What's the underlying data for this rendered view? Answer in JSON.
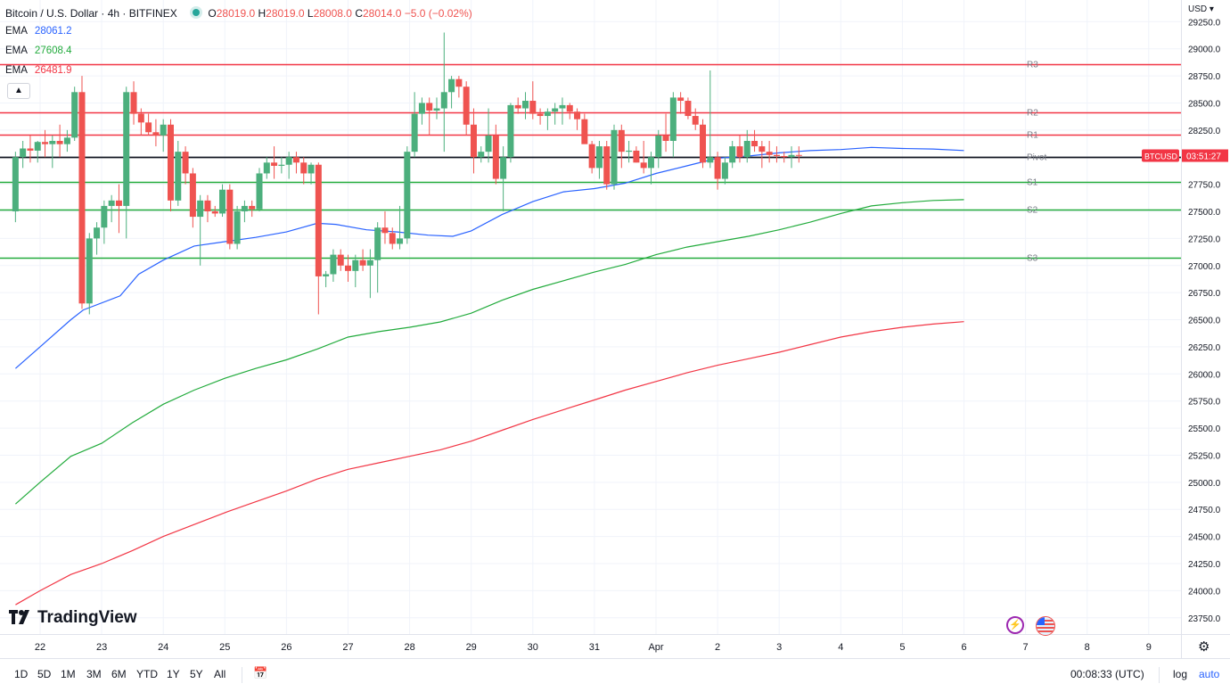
{
  "header": {
    "title": "Bitcoin / U.S. Dollar · 4h · BITFINEX",
    "ohlc": {
      "o_label": "O",
      "o": "28019.0",
      "h_label": "H",
      "h": "28019.0",
      "l_label": "L",
      "l": "28008.0",
      "c_label": "C",
      "c": "28014.0",
      "change": "−5.0 (−0.02%)"
    }
  },
  "indicators": [
    {
      "label": "EMA",
      "value": "28061.2",
      "color": "#2962ff"
    },
    {
      "label": "EMA",
      "value": "27608.4",
      "color": "#22ab3c"
    },
    {
      "label": "EMA",
      "value": "26481.9",
      "color": "#f23645"
    }
  ],
  "currency": "USD",
  "price_badge": {
    "symbol": "BTCUSD",
    "countdown": "03:51:27",
    "color": "#f23645"
  },
  "brand": "TradingView",
  "bottom_bar": {
    "ranges": [
      "1D",
      "5D",
      "1M",
      "3M",
      "6M",
      "YTD",
      "1Y",
      "5Y",
      "All"
    ],
    "clock": "00:08:33 (UTC)",
    "log_label": "log",
    "auto_label": "auto"
  },
  "colors": {
    "up": "#26a69a",
    "up_body": "#4caf7d",
    "down": "#ef5350",
    "pivot": "#131722",
    "resistance": "#f23645",
    "support": "#22ab3c"
  },
  "chart_data": {
    "type": "candlestick",
    "y_axis_ticks": [
      "29250.0",
      "29000.0",
      "28750.0",
      "28500.0",
      "28250.0",
      "28000.0",
      "27750.0",
      "27500.0",
      "27250.0",
      "27000.0",
      "26750.0",
      "26500.0",
      "26250.0",
      "26000.0",
      "25750.0",
      "25500.0",
      "25250.0",
      "25000.0",
      "24750.0",
      "24500.0",
      "24250.0",
      "24000.0",
      "23750.0"
    ],
    "ylim": [
      23600,
      29450
    ],
    "x_axis_ticks": [
      "22",
      "23",
      "24",
      "25",
      "26",
      "27",
      "28",
      "29",
      "30",
      "31",
      "Apr",
      "2",
      "3",
      "4",
      "5",
      "6",
      "7",
      "8",
      "9"
    ],
    "pivot_levels": [
      {
        "name": "R3",
        "value": 28860
      },
      {
        "name": "R2",
        "value": 28410
      },
      {
        "name": "R1",
        "value": 28210
      },
      {
        "name": "Pivot",
        "value": 28000
      },
      {
        "name": "S1",
        "value": 27770
      },
      {
        "name": "S2",
        "value": 27520
      },
      {
        "name": "S3",
        "value": 27070
      }
    ],
    "ema_series": [
      {
        "name": "EMA",
        "color": "#2962ff",
        "points": [
          [
            21.6,
            26050
          ],
          [
            22.0,
            26250
          ],
          [
            22.5,
            26500
          ],
          [
            22.7,
            26590
          ],
          [
            23.3,
            26720
          ],
          [
            23.6,
            26920
          ],
          [
            24.0,
            27050
          ],
          [
            24.5,
            27180
          ],
          [
            25.0,
            27220
          ],
          [
            25.5,
            27260
          ],
          [
            26.0,
            27310
          ],
          [
            26.5,
            27390
          ],
          [
            26.8,
            27380
          ],
          [
            27.3,
            27330
          ],
          [
            27.8,
            27310
          ],
          [
            28.3,
            27280
          ],
          [
            28.7,
            27270
          ],
          [
            29.0,
            27320
          ],
          [
            29.5,
            27470
          ],
          [
            30.0,
            27590
          ],
          [
            30.5,
            27680
          ],
          [
            31.0,
            27710
          ],
          [
            31.5,
            27760
          ],
          [
            32.0,
            27850
          ],
          [
            32.5,
            27920
          ],
          [
            33.0,
            27990
          ],
          [
            33.5,
            28010
          ],
          [
            34.0,
            28040
          ],
          [
            34.5,
            28060
          ],
          [
            35.0,
            28070
          ],
          [
            35.5,
            28090
          ],
          [
            36.0,
            28080
          ],
          [
            36.5,
            28075
          ],
          [
            37.0,
            28061
          ]
        ]
      },
      {
        "name": "EMA",
        "color": "#22ab3c",
        "points": [
          [
            21.6,
            24800
          ],
          [
            22.0,
            25000
          ],
          [
            22.5,
            25240
          ],
          [
            23.0,
            25360
          ],
          [
            23.5,
            25550
          ],
          [
            24.0,
            25720
          ],
          [
            24.5,
            25850
          ],
          [
            25.0,
            25960
          ],
          [
            25.5,
            26050
          ],
          [
            26.0,
            26130
          ],
          [
            26.5,
            26230
          ],
          [
            27.0,
            26340
          ],
          [
            27.5,
            26390
          ],
          [
            28.0,
            26430
          ],
          [
            28.5,
            26480
          ],
          [
            29.0,
            26560
          ],
          [
            29.5,
            26680
          ],
          [
            30.0,
            26780
          ],
          [
            30.5,
            26860
          ],
          [
            31.0,
            26940
          ],
          [
            31.5,
            27010
          ],
          [
            32.0,
            27100
          ],
          [
            32.5,
            27170
          ],
          [
            33.0,
            27220
          ],
          [
            33.5,
            27270
          ],
          [
            34.0,
            27330
          ],
          [
            34.5,
            27400
          ],
          [
            35.0,
            27480
          ],
          [
            35.5,
            27550
          ],
          [
            36.0,
            27580
          ],
          [
            36.5,
            27600
          ],
          [
            37.0,
            27608
          ]
        ]
      },
      {
        "name": "EMA",
        "color": "#f23645",
        "points": [
          [
            21.6,
            23870
          ],
          [
            22.0,
            24000
          ],
          [
            22.5,
            24150
          ],
          [
            23.0,
            24250
          ],
          [
            23.5,
            24370
          ],
          [
            24.0,
            24500
          ],
          [
            24.5,
            24610
          ],
          [
            25.0,
            24720
          ],
          [
            25.5,
            24820
          ],
          [
            26.0,
            24920
          ],
          [
            26.5,
            25030
          ],
          [
            27.0,
            25120
          ],
          [
            27.5,
            25180
          ],
          [
            28.0,
            25240
          ],
          [
            28.5,
            25300
          ],
          [
            29.0,
            25380
          ],
          [
            29.5,
            25480
          ],
          [
            30.0,
            25580
          ],
          [
            30.5,
            25670
          ],
          [
            31.0,
            25760
          ],
          [
            31.5,
            25850
          ],
          [
            32.0,
            25930
          ],
          [
            32.5,
            26010
          ],
          [
            33.0,
            26080
          ],
          [
            33.5,
            26140
          ],
          [
            34.0,
            26200
          ],
          [
            34.5,
            26270
          ],
          [
            35.0,
            26340
          ],
          [
            35.5,
            26390
          ],
          [
            36.0,
            26430
          ],
          [
            36.5,
            26460
          ],
          [
            37.0,
            26482
          ]
        ]
      }
    ],
    "candles": [
      [
        21.6,
        27500,
        28050,
        27400,
        28000
      ],
      [
        21.72,
        28000,
        28150,
        27900,
        28080
      ],
      [
        21.84,
        28080,
        28200,
        27950,
        28060
      ],
      [
        21.96,
        28060,
        28150,
        27950,
        28140
      ],
      [
        22.08,
        28140,
        28250,
        28000,
        28120
      ],
      [
        22.2,
        28120,
        28200,
        27900,
        28150
      ],
      [
        22.32,
        28150,
        28300,
        28000,
        28120
      ],
      [
        22.44,
        28120,
        28250,
        28050,
        28180
      ],
      [
        22.56,
        28180,
        28650,
        28150,
        28600
      ],
      [
        22.68,
        28600,
        28750,
        26600,
        26650
      ],
      [
        22.8,
        26650,
        27300,
        26550,
        27250
      ],
      [
        22.92,
        27250,
        27400,
        27100,
        27350
      ],
      [
        23.04,
        27350,
        27600,
        27200,
        27550
      ],
      [
        23.16,
        27550,
        27650,
        27400,
        27600
      ],
      [
        23.28,
        27600,
        27750,
        27300,
        27550
      ],
      [
        23.4,
        27550,
        28650,
        27250,
        28600
      ],
      [
        23.52,
        28600,
        28700,
        28300,
        28400
      ],
      [
        23.64,
        28400,
        28450,
        28200,
        28320
      ],
      [
        23.76,
        28320,
        28400,
        28200,
        28230
      ],
      [
        23.88,
        28230,
        28350,
        28100,
        28200
      ],
      [
        24.0,
        28200,
        28350,
        28050,
        28300
      ],
      [
        24.12,
        28300,
        28350,
        27500,
        27600
      ],
      [
        24.24,
        27600,
        28150,
        27550,
        28050
      ],
      [
        24.36,
        28050,
        28100,
        27750,
        27850
      ],
      [
        24.48,
        27850,
        27900,
        27350,
        27450
      ],
      [
        24.6,
        27450,
        27650,
        27000,
        27600
      ],
      [
        24.72,
        27600,
        27650,
        27400,
        27500
      ],
      [
        24.84,
        27500,
        27550,
        27450,
        27480
      ],
      [
        24.96,
        27480,
        27750,
        27450,
        27700
      ],
      [
        25.08,
        27700,
        27750,
        27150,
        27200
      ],
      [
        25.2,
        27200,
        27550,
        27150,
        27500
      ],
      [
        25.32,
        27500,
        27600,
        27400,
        27550
      ],
      [
        25.44,
        27550,
        27600,
        27450,
        27520
      ],
      [
        25.56,
        27520,
        27900,
        27500,
        27850
      ],
      [
        25.68,
        27850,
        28000,
        27800,
        27950
      ],
      [
        25.8,
        27950,
        28100,
        27800,
        27920
      ],
      [
        25.92,
        27920,
        28000,
        27850,
        27930
      ],
      [
        26.04,
        27930,
        28050,
        27800,
        28000
      ],
      [
        26.16,
        28000,
        28050,
        27850,
        27950
      ],
      [
        26.28,
        27950,
        28000,
        27750,
        27850
      ],
      [
        26.4,
        27850,
        27950,
        27750,
        27930
      ],
      [
        26.52,
        27930,
        27950,
        26550,
        26900
      ],
      [
        26.64,
        26900,
        26950,
        26800,
        26920
      ],
      [
        26.76,
        26920,
        27150,
        26850,
        27100
      ],
      [
        26.88,
        27100,
        27150,
        26950,
        27000
      ],
      [
        27.0,
        27000,
        27100,
        26850,
        26950
      ],
      [
        27.12,
        26950,
        27100,
        26800,
        27050
      ],
      [
        27.24,
        27050,
        27150,
        26950,
        27000
      ],
      [
        27.36,
        27000,
        27150,
        26700,
        27050
      ],
      [
        27.48,
        27050,
        27400,
        26750,
        27350
      ],
      [
        27.6,
        27350,
        27500,
        27200,
        27300
      ],
      [
        27.72,
        27300,
        27350,
        27150,
        27200
      ],
      [
        27.84,
        27200,
        27550,
        27150,
        27250
      ],
      [
        27.96,
        27250,
        28100,
        27200,
        28050
      ],
      [
        28.08,
        28050,
        28600,
        28000,
        28400
      ],
      [
        28.2,
        28400,
        28550,
        28300,
        28500
      ],
      [
        28.32,
        28500,
        28550,
        28200,
        28430
      ],
      [
        28.44,
        28430,
        28550,
        28350,
        28450
      ],
      [
        28.56,
        28450,
        29150,
        28050,
        28600
      ],
      [
        28.68,
        28600,
        28750,
        28450,
        28720
      ],
      [
        28.8,
        28720,
        28750,
        28550,
        28650
      ],
      [
        28.92,
        28650,
        28700,
        28200,
        28300
      ],
      [
        29.04,
        28300,
        28450,
        27850,
        28000
      ],
      [
        29.16,
        28000,
        28100,
        27950,
        28050
      ],
      [
        29.28,
        28050,
        28450,
        27950,
        28200
      ],
      [
        29.4,
        28200,
        28300,
        27750,
        27800
      ],
      [
        29.52,
        27800,
        28100,
        27500,
        28000
      ],
      [
        29.64,
        28000,
        28500,
        27950,
        28480
      ],
      [
        29.76,
        28480,
        28550,
        28400,
        28450
      ],
      [
        29.88,
        28450,
        28600,
        28350,
        28520
      ],
      [
        30.0,
        28520,
        28700,
        28350,
        28400
      ],
      [
        30.12,
        28400,
        28450,
        28300,
        28380
      ],
      [
        30.24,
        28380,
        28450,
        28250,
        28420
      ],
      [
        30.36,
        28420,
        28500,
        28300,
        28450
      ],
      [
        30.48,
        28450,
        28550,
        28300,
        28480
      ],
      [
        30.6,
        28480,
        28500,
        28350,
        28420
      ],
      [
        30.72,
        28420,
        28450,
        28250,
        28350
      ],
      [
        30.84,
        28350,
        28400,
        28150,
        28120
      ],
      [
        30.96,
        28120,
        28150,
        27850,
        27900
      ],
      [
        31.08,
        27900,
        28150,
        27800,
        28100
      ],
      [
        31.2,
        28100,
        28150,
        27700,
        27750
      ],
      [
        31.32,
        27750,
        28300,
        27700,
        28250
      ],
      [
        31.44,
        28250,
        28300,
        27900,
        28050
      ],
      [
        31.56,
        28050,
        28150,
        27950,
        28060
      ],
      [
        31.68,
        28060,
        28100,
        27950,
        27950
      ],
      [
        31.8,
        27950,
        28150,
        27850,
        27900
      ],
      [
        31.92,
        27900,
        28050,
        27750,
        28000
      ],
      [
        32.04,
        28000,
        28250,
        27900,
        28200
      ],
      [
        32.16,
        28200,
        28400,
        28050,
        28150
      ],
      [
        32.28,
        28150,
        28600,
        28000,
        28550
      ],
      [
        32.4,
        28550,
        28600,
        28400,
        28520
      ],
      [
        32.52,
        28520,
        28550,
        28350,
        28380
      ],
      [
        32.64,
        28380,
        28450,
        28250,
        28300
      ],
      [
        32.76,
        28300,
        28350,
        27900,
        27950
      ],
      [
        32.88,
        27950,
        28800,
        27900,
        28000
      ],
      [
        33.0,
        28000,
        28050,
        27700,
        27800
      ],
      [
        33.12,
        27800,
        28000,
        27750,
        27950
      ],
      [
        33.24,
        27950,
        28150,
        27900,
        28100
      ],
      [
        33.36,
        28100,
        28200,
        27950,
        28000
      ],
      [
        33.48,
        28000,
        28250,
        27950,
        28150
      ],
      [
        33.6,
        28150,
        28250,
        28050,
        28100
      ],
      [
        33.72,
        28100,
        28150,
        27900,
        28050
      ],
      [
        33.84,
        28050,
        28150,
        27950,
        28020
      ],
      [
        33.96,
        28020,
        28100,
        27950,
        28010
      ],
      [
        34.08,
        28010,
        28050,
        27950,
        28000
      ],
      [
        34.2,
        28000,
        28100,
        27900,
        28020
      ],
      [
        34.32,
        28020,
        28100,
        27950,
        28014
      ]
    ]
  }
}
